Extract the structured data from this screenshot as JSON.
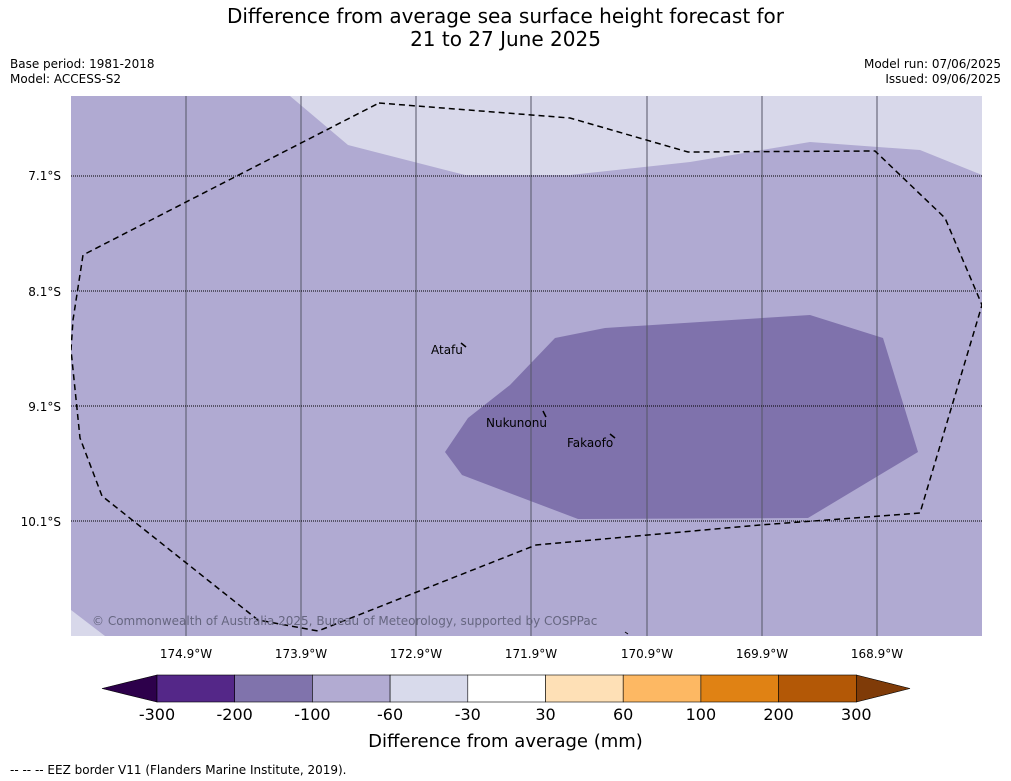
{
  "title": {
    "line1": "Difference from average sea surface height forecast for",
    "line2": "21 to 27 June 2025"
  },
  "meta": {
    "base_period": "Base period: 1981-2018",
    "model": "Model: ACCESS-S2",
    "model_run": "Model run: 07/06/2025",
    "issued": "Issued: 09/06/2025"
  },
  "map": {
    "latitude_labels": [
      "7.1°S",
      "8.1°S",
      "9.1°S",
      "10.1°S"
    ],
    "longitude_labels": [
      "174.9°W",
      "173.9°W",
      "172.9°W",
      "171.9°W",
      "170.9°W",
      "169.9°W",
      "168.9°W"
    ],
    "places": {
      "atafu": "Atafu",
      "nukunonu": "Nukunonu",
      "fakaofo": "Fakaofo"
    },
    "copyright": "© Commonwealth of Australia 2025, Bureau of Meteorology, supported by COSPPac",
    "colors": {
      "category_minus100_minus60": "#b0aad2",
      "category_minus60_minus30": "#d8d8ea",
      "category_minus200_minus100": "#7f72ac"
    }
  },
  "colorbar": {
    "label": "Difference from average (mm)",
    "ticks": [
      "-300",
      "-200",
      "-100",
      "-60",
      "-30",
      "30",
      "60",
      "100",
      "200",
      "300"
    ],
    "colors": [
      "#2d004b",
      "#542788",
      "#8073ac",
      "#b2abd2",
      "#d8daeb",
      "#ffffff",
      "#fee0b6",
      "#fdb863",
      "#e08214",
      "#b35806",
      "#7f3b08"
    ]
  },
  "legend_note": "--  --  -- EEZ border V11 (Flanders Marine Institute, 2019)."
}
